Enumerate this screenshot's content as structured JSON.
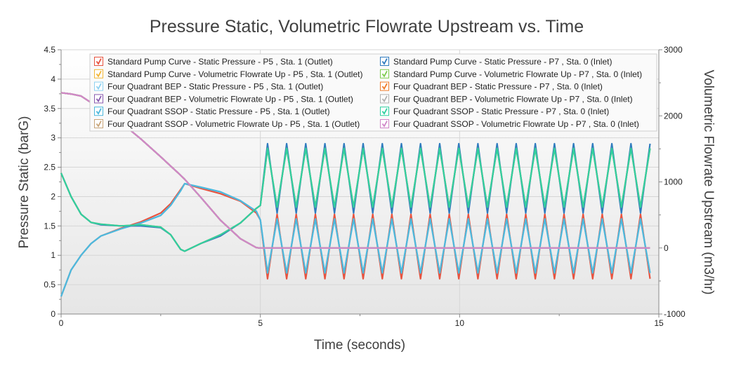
{
  "chart_data": {
    "type": "line",
    "title": "Pressure Static, Volumetric Flowrate Upstream vs. Time",
    "xlabel": "Time (seconds)",
    "ylabel": "Pressure Static (barG)",
    "y2label": "Volumetric Flowrate Upstream (m3/hr)",
    "xlim": [
      0,
      15
    ],
    "ylim": [
      0,
      4.5
    ],
    "y2lim": [
      -1000,
      3000
    ],
    "xticks": [
      "0",
      "5",
      "10",
      "15"
    ],
    "yticks": [
      "0",
      "0.5",
      "1",
      "1.5",
      "2",
      "2.5",
      "3",
      "3.5",
      "4",
      "4.5"
    ],
    "y2ticks": [
      "-1000",
      "0",
      "1000",
      "2000",
      "3000"
    ],
    "grid": true,
    "legend_placement": "top",
    "x": [
      0,
      0.25,
      0.5,
      0.75,
      1,
      1.5,
      2,
      2.5,
      2.75,
      3,
      3.1,
      3.5,
      4,
      4.5,
      4.9,
      5.0,
      5.18,
      5.42,
      5.66,
      5.9,
      6.14,
      6.38,
      6.62,
      6.86,
      7.1,
      7.34,
      7.58,
      7.82,
      8.06,
      8.3,
      8.54,
      8.78,
      9.02,
      9.26,
      9.5,
      9.74,
      9.98,
      10.22,
      10.46,
      10.7,
      10.94,
      11.18,
      11.42,
      11.66,
      11.9,
      12.14,
      12.38,
      12.62,
      12.86,
      13.1,
      13.34,
      13.58,
      13.82,
      14.06,
      14.3,
      14.54,
      14.78
    ],
    "series": [
      {
        "name": "Standard Pump Curve - Static Pressure - P5 , Sta. 1 (Outlet)",
        "axis": "left",
        "color": "#e8533f",
        "values": [
          0.3,
          0.75,
          1.0,
          1.2,
          1.33,
          1.46,
          1.57,
          1.72,
          1.88,
          2.12,
          2.22,
          2.14,
          2.05,
          1.92,
          1.72,
          1.6,
          0.6,
          1.7,
          0.6,
          1.7,
          0.6,
          1.7,
          0.6,
          1.7,
          0.6,
          1.7,
          0.6,
          1.7,
          0.6,
          1.7,
          0.6,
          1.7,
          0.6,
          1.7,
          0.6,
          1.7,
          0.6,
          1.7,
          0.6,
          1.7,
          0.6,
          1.7,
          0.6,
          1.7,
          0.6,
          1.7,
          0.6,
          1.7,
          0.6,
          1.7,
          0.6,
          1.7,
          0.6,
          1.7,
          0.6,
          1.7,
          0.6
        ]
      },
      {
        "name": "Standard Pump Curve - Volumetric Flowrate Up - P5 , Sta. 1 (Outlet)",
        "axis": "right",
        "color": "#f2b636",
        "values": [
          2350,
          2330,
          2300,
          2200,
          2120,
          1900,
          1650,
          1380,
          1240,
          1100,
          1040,
          770,
          420,
          140,
          5,
          0,
          0,
          0,
          0,
          0,
          0,
          0,
          0,
          0,
          0,
          0,
          0,
          0,
          0,
          0,
          0,
          0,
          0,
          0,
          0,
          0,
          0,
          0,
          0,
          0,
          0,
          0,
          0,
          0,
          0,
          0,
          0,
          0,
          0,
          0,
          0,
          0,
          0,
          0,
          0,
          0,
          0
        ]
      },
      {
        "name": "Four Quadrant BEP - Static Pressure - P5 , Sta. 1 (Outlet)",
        "axis": "left",
        "color": "#8fd1f0",
        "values": [
          0.3,
          0.75,
          1.0,
          1.2,
          1.33,
          1.45,
          1.55,
          1.68,
          1.85,
          2.1,
          2.22,
          2.16,
          2.08,
          1.93,
          1.75,
          1.6,
          0.7,
          1.62,
          0.7,
          1.62,
          0.7,
          1.62,
          0.7,
          1.62,
          0.7,
          1.62,
          0.7,
          1.62,
          0.7,
          1.62,
          0.7,
          1.62,
          0.7,
          1.62,
          0.7,
          1.62,
          0.7,
          1.62,
          0.7,
          1.62,
          0.7,
          1.62,
          0.7,
          1.62,
          0.7,
          1.62,
          0.7,
          1.62,
          0.7,
          1.62,
          0.7,
          1.62,
          0.7,
          1.62,
          0.7,
          1.62,
          0.7
        ]
      },
      {
        "name": "Four Quadrant BEP - Volumetric Flowrate Up - P5 , Sta. 1 (Outlet)",
        "axis": "right",
        "color": "#8a5bb0",
        "values": [
          2350,
          2330,
          2300,
          2200,
          2120,
          1900,
          1650,
          1380,
          1240,
          1100,
          1040,
          770,
          420,
          140,
          5,
          0,
          0,
          0,
          0,
          0,
          0,
          0,
          0,
          0,
          0,
          0,
          0,
          0,
          0,
          0,
          0,
          0,
          0,
          0,
          0,
          0,
          0,
          0,
          0,
          0,
          0,
          0,
          0,
          0,
          0,
          0,
          0,
          0,
          0,
          0,
          0,
          0,
          0,
          0,
          0,
          0,
          0
        ]
      },
      {
        "name": "Four Quadrant SSOP - Static Pressure - P5 , Sta. 1 (Outlet)",
        "axis": "left",
        "color": "#4db8dc",
        "values": [
          0.3,
          0.75,
          1.0,
          1.2,
          1.33,
          1.45,
          1.55,
          1.68,
          1.85,
          2.1,
          2.22,
          2.16,
          2.08,
          1.93,
          1.75,
          1.6,
          0.7,
          1.62,
          0.7,
          1.62,
          0.7,
          1.62,
          0.7,
          1.62,
          0.7,
          1.62,
          0.7,
          1.62,
          0.7,
          1.62,
          0.7,
          1.62,
          0.7,
          1.62,
          0.7,
          1.62,
          0.7,
          1.62,
          0.7,
          1.62,
          0.7,
          1.62,
          0.7,
          1.62,
          0.7,
          1.62,
          0.7,
          1.62,
          0.7,
          1.62,
          0.7,
          1.62,
          0.7,
          1.62,
          0.7,
          1.62,
          0.7
        ]
      },
      {
        "name": "Four Quadrant SSOP - Volumetric Flowrate Up - P5 , Sta. 1 (Outlet)",
        "axis": "right",
        "color": "#c8a57a",
        "values": [
          2350,
          2330,
          2300,
          2200,
          2120,
          1900,
          1650,
          1380,
          1240,
          1100,
          1040,
          770,
          420,
          140,
          5,
          0,
          0,
          0,
          0,
          0,
          0,
          0,
          0,
          0,
          0,
          0,
          0,
          0,
          0,
          0,
          0,
          0,
          0,
          0,
          0,
          0,
          0,
          0,
          0,
          0,
          0,
          0,
          0,
          0,
          0,
          0,
          0,
          0,
          0,
          0,
          0,
          0,
          0,
          0,
          0,
          0,
          0
        ]
      },
      {
        "name": "Standard Pump Curve - Static Pressure - P7 , Sta. 0 (Inlet)",
        "axis": "left",
        "color": "#2f7bbf",
        "values": [
          2.4,
          2.0,
          1.7,
          1.56,
          1.52,
          1.5,
          1.5,
          1.47,
          1.35,
          1.1,
          1.07,
          1.2,
          1.33,
          1.55,
          1.8,
          1.85,
          2.9,
          1.72,
          2.9,
          1.72,
          2.9,
          1.72,
          2.9,
          1.72,
          2.9,
          1.72,
          2.9,
          1.72,
          2.9,
          1.72,
          2.9,
          1.72,
          2.9,
          1.72,
          2.9,
          1.72,
          2.9,
          1.72,
          2.9,
          1.72,
          2.9,
          1.72,
          2.9,
          1.72,
          2.9,
          1.72,
          2.9,
          1.72,
          2.9,
          1.72,
          2.9,
          1.72,
          2.9,
          1.72,
          2.9,
          1.72,
          2.9
        ]
      },
      {
        "name": "Standard Pump Curve - Volumetric Flowrate Up - P7 , Sta. 0 (Inlet)",
        "axis": "right",
        "color": "#7dcc4e",
        "values": [
          2350,
          2330,
          2300,
          2200,
          2120,
          1900,
          1650,
          1380,
          1240,
          1100,
          1040,
          770,
          420,
          140,
          5,
          0,
          0,
          0,
          0,
          0,
          0,
          0,
          0,
          0,
          0,
          0,
          0,
          0,
          0,
          0,
          0,
          0,
          0,
          0,
          0,
          0,
          0,
          0,
          0,
          0,
          0,
          0,
          0,
          0,
          0,
          0,
          0,
          0,
          0,
          0,
          0,
          0,
          0,
          0,
          0,
          0,
          0
        ]
      },
      {
        "name": "Four Quadrant BEP - Static Pressure - P7 , Sta. 0 (Inlet)",
        "axis": "left",
        "color": "#f07b2a",
        "values": [
          2.4,
          2.0,
          1.7,
          1.56,
          1.53,
          1.5,
          1.52,
          1.48,
          1.35,
          1.1,
          1.07,
          1.2,
          1.35,
          1.55,
          1.8,
          1.85,
          2.82,
          1.82,
          2.82,
          1.82,
          2.82,
          1.82,
          2.82,
          1.82,
          2.82,
          1.82,
          2.82,
          1.82,
          2.82,
          1.82,
          2.82,
          1.82,
          2.82,
          1.82,
          2.82,
          1.82,
          2.82,
          1.82,
          2.82,
          1.82,
          2.82,
          1.82,
          2.82,
          1.82,
          2.82,
          1.82,
          2.82,
          1.82,
          2.82,
          1.82,
          2.82,
          1.82,
          2.82,
          1.82,
          2.82,
          1.82,
          2.82
        ]
      },
      {
        "name": "Four Quadrant BEP - Volumetric Flowrate Up - P7 , Sta. 0 (Inlet)",
        "axis": "right",
        "color": "#b0b0b0",
        "values": [
          2350,
          2330,
          2300,
          2200,
          2120,
          1900,
          1650,
          1380,
          1240,
          1100,
          1040,
          770,
          420,
          140,
          5,
          0,
          0,
          0,
          0,
          0,
          0,
          0,
          0,
          0,
          0,
          0,
          0,
          0,
          0,
          0,
          0,
          0,
          0,
          0,
          0,
          0,
          0,
          0,
          0,
          0,
          0,
          0,
          0,
          0,
          0,
          0,
          0,
          0,
          0,
          0,
          0,
          0,
          0,
          0,
          0,
          0,
          0
        ]
      },
      {
        "name": "Four Quadrant SSOP - Static Pressure - P7 , Sta. 0 (Inlet)",
        "axis": "left",
        "color": "#2fd0a0",
        "values": [
          2.4,
          2.0,
          1.7,
          1.56,
          1.53,
          1.5,
          1.52,
          1.48,
          1.35,
          1.1,
          1.07,
          1.2,
          1.35,
          1.55,
          1.8,
          1.85,
          2.82,
          1.82,
          2.82,
          1.82,
          2.82,
          1.82,
          2.82,
          1.82,
          2.82,
          1.82,
          2.82,
          1.82,
          2.82,
          1.82,
          2.82,
          1.82,
          2.82,
          1.82,
          2.82,
          1.82,
          2.82,
          1.82,
          2.82,
          1.82,
          2.82,
          1.82,
          2.82,
          1.82,
          2.82,
          1.82,
          2.82,
          1.82,
          2.82,
          1.82,
          2.82,
          1.82,
          2.82,
          1.82,
          2.82,
          1.82,
          2.82
        ]
      },
      {
        "name": "Four Quadrant SSOP - Volumetric Flowrate Up - P7 , Sta. 0 (Inlet)",
        "axis": "right",
        "color": "#d086c8",
        "values": [
          2350,
          2330,
          2300,
          2200,
          2120,
          1900,
          1650,
          1380,
          1240,
          1100,
          1040,
          770,
          420,
          140,
          5,
          0,
          0,
          0,
          0,
          0,
          0,
          0,
          0,
          0,
          0,
          0,
          0,
          0,
          0,
          0,
          0,
          0,
          0,
          0,
          0,
          0,
          0,
          0,
          0,
          0,
          0,
          0,
          0,
          0,
          0,
          0,
          0,
          0,
          0,
          0,
          0,
          0,
          0,
          0,
          0,
          0,
          0
        ]
      }
    ]
  }
}
